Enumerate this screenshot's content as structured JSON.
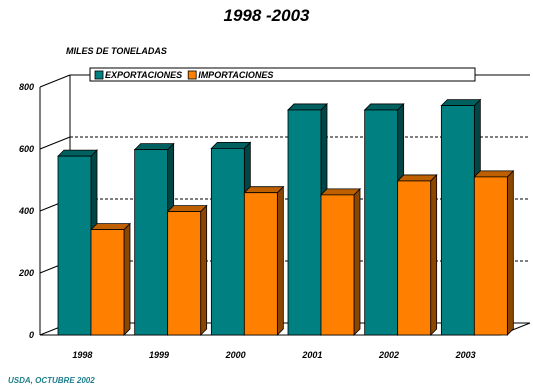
{
  "title": "1998 -2003",
  "unit_label": "MILES DE TONELADAS",
  "source": "USDA, OCTUBRE 2002",
  "chart_data": {
    "type": "bar",
    "title": "1998 -2003",
    "ylabel": "MILES DE TONELADAS",
    "categories": [
      "1998",
      "1999",
      "2000",
      "2001",
      "2002",
      "2003"
    ],
    "series": [
      {
        "name": "EXPORTACIONES",
        "color": "#008080",
        "values": [
          577,
          598,
          602,
          726,
          726,
          740
        ]
      },
      {
        "name": "IMPORTACIONES",
        "color": "#ff8000",
        "values": [
          340,
          398,
          459,
          452,
          497,
          510
        ]
      }
    ],
    "ylim": [
      0,
      800
    ],
    "yticks": [
      0,
      200,
      400,
      600,
      800
    ],
    "grid": true,
    "legend_position": "top"
  }
}
